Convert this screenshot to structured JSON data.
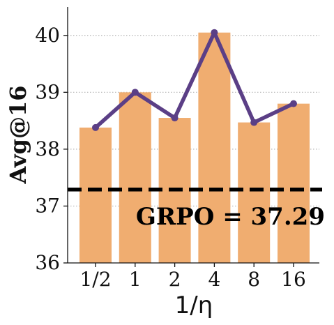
{
  "chart_data": {
    "type": "bar",
    "title": "",
    "xlabel": "1/η",
    "ylabel": "Avg@16",
    "categories": [
      "1/2",
      "1",
      "2",
      "4",
      "8",
      "16"
    ],
    "series": [
      {
        "kind": "bar",
        "values": [
          38.38,
          39.0,
          38.55,
          40.05,
          38.47,
          38.8
        ],
        "color": "#f0ad70"
      },
      {
        "kind": "line",
        "values": [
          38.38,
          39.0,
          38.55,
          40.05,
          38.47,
          38.8
        ],
        "color": "#5b3f86"
      }
    ],
    "ylim": [
      36,
      40.5
    ],
    "yticks": [
      36,
      37,
      38,
      39,
      40
    ],
    "grid": "horizontal dotted",
    "baseline": {
      "value": 37.29,
      "label": "GRPO = 37.29",
      "style": "dashed",
      "color": "#000000"
    }
  }
}
